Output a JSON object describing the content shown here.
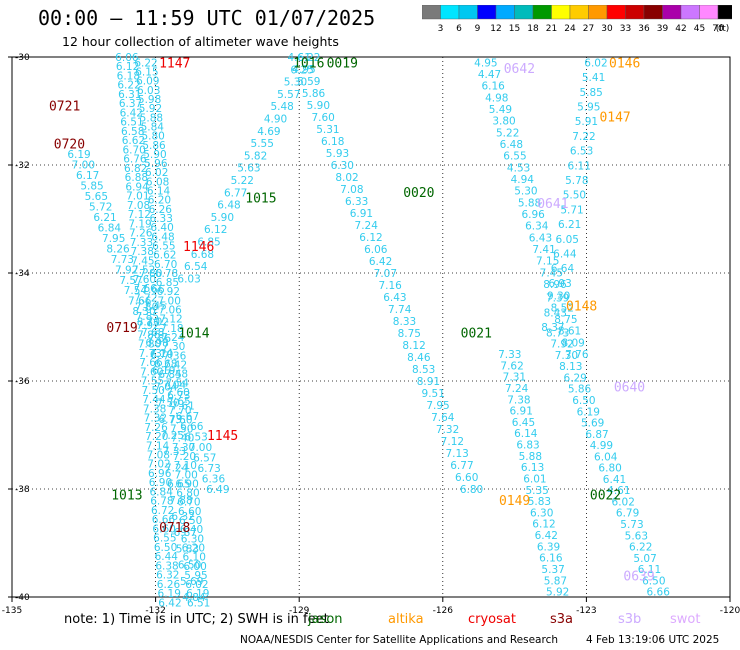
{
  "header": {
    "title": "00:00 – 11:59 UTC 01/07/2025",
    "subtitle": "12 hour collection of altimeter wave heights"
  },
  "colorbar": {
    "labels": [
      "3",
      "6",
      "9",
      "12",
      "15",
      "18",
      "21",
      "24",
      "27",
      "30",
      "33",
      "36",
      "39",
      "42",
      "45",
      "70",
      "(ft)"
    ],
    "colors": [
      "#7a7a7a",
      "#00e5ff",
      "#00c8f0",
      "#0000ff",
      "#00aaff",
      "#00bbbb",
      "#009900",
      "#ffff00",
      "#ffcc00",
      "#ff9900",
      "#ff0000",
      "#cc0000",
      "#880000",
      "#aa00aa",
      "#cc77ff",
      "#ff88ff",
      "#000000"
    ]
  },
  "footer": {
    "note": "note:  1) Time is in UTC; 2) SWH is in feet",
    "legend": [
      {
        "label": "jason",
        "color": "#006600"
      },
      {
        "label": "altika",
        "color": "#ff9900"
      },
      {
        "label": "cryosat",
        "color": "#ee0000"
      },
      {
        "label": "s3a",
        "color": "#880000"
      },
      {
        "label": "s3b",
        "color": "#ccaaff"
      },
      {
        "label": "swot",
        "color": "#ddaaff"
      }
    ],
    "credit": "NOAA/NESDIS Center for Satellite Applications and Research",
    "timestamp": "4 Feb 13:19:06 UTC 2025"
  },
  "chart_data": {
    "type": "scatter",
    "title": "00:00 – 11:59 UTC 01/07/2025",
    "xlabel": "",
    "ylabel": "",
    "xlim": [
      -135,
      -120
    ],
    "ylim": [
      -40,
      -30
    ],
    "x_ticks": [
      "-135",
      "-132",
      "-129",
      "-126",
      "-123",
      "-120"
    ],
    "y_ticks": [
      "-30",
      "-32",
      "-34",
      "-36",
      "-38",
      "-40"
    ],
    "grid": true,
    "units": "ft",
    "pass_labels": [
      {
        "label": "1147",
        "x": -131.6,
        "y": -30.1,
        "color": "#ee0000"
      },
      {
        "label": "1146",
        "x": -131.1,
        "y": -33.5,
        "color": "#ee0000"
      },
      {
        "label": "1145",
        "x": -130.6,
        "y": -37.0,
        "color": "#ee0000"
      },
      {
        "label": "0718",
        "x": -131.6,
        "y": -38.7,
        "color": "#880000"
      },
      {
        "label": "0719",
        "x": -132.7,
        "y": -35.0,
        "color": "#880000"
      },
      {
        "label": "0720",
        "x": -133.8,
        "y": -31.6,
        "color": "#880000"
      },
      {
        "label": "0721",
        "x": -133.9,
        "y": -30.9,
        "color": "#880000"
      },
      {
        "label": "1014",
        "x": -131.2,
        "y": -35.1,
        "color": "#006600"
      },
      {
        "label": "1015",
        "x": -129.8,
        "y": -32.6,
        "color": "#006600"
      },
      {
        "label": "1013",
        "x": -132.6,
        "y": -38.1,
        "color": "#006600"
      },
      {
        "label": "0019",
        "x": -128.1,
        "y": -30.1,
        "color": "#006600"
      },
      {
        "label": "1016",
        "x": -128.8,
        "y": -30.1,
        "color": "#006600"
      },
      {
        "label": "0020",
        "x": -126.5,
        "y": -32.5,
        "color": "#006600"
      },
      {
        "label": "0021",
        "x": -125.3,
        "y": -35.1,
        "color": "#006600"
      },
      {
        "label": "0022",
        "x": -122.6,
        "y": -38.1,
        "color": "#006600"
      },
      {
        "label": "0146",
        "x": -122.2,
        "y": -30.1,
        "color": "#ff9900"
      },
      {
        "label": "0147",
        "x": -122.4,
        "y": -31.1,
        "color": "#ff9900"
      },
      {
        "label": "0148",
        "x": -123.1,
        "y": -34.6,
        "color": "#ff9900"
      },
      {
        "label": "0149",
        "x": -124.5,
        "y": -38.2,
        "color": "#ff9900"
      },
      {
        "label": "0642",
        "x": -124.4,
        "y": -30.2,
        "color": "#ccaaff"
      },
      {
        "label": "0641",
        "x": -123.7,
        "y": -32.7,
        "color": "#ccaaff"
      },
      {
        "label": "0640",
        "x": -122.1,
        "y": -36.1,
        "color": "#ccaaff"
      },
      {
        "label": "0639",
        "x": -121.9,
        "y": -39.6,
        "color": "#ccaaff"
      }
    ],
    "series": [
      {
        "name": "1147",
        "color": "#33ccee",
        "x_start": -132.6,
        "x_end": -131.7,
        "y_start": -30,
        "y_end": -40.1,
        "values": [
          6.06,
          6.12,
          6.18,
          6.22,
          6.31,
          6.37,
          6.42,
          6.51,
          6.58,
          6.62,
          6.7,
          6.76,
          6.82,
          6.88,
          6.94,
          7.01,
          7.08,
          7.12,
          7.19,
          7.26,
          7.33,
          7.38,
          7.45,
          7.52,
          7.6,
          7.66,
          7.72,
          7.8,
          7.85,
          7.92,
          7.86,
          7.8,
          7.73,
          7.66,
          7.6,
          7.55,
          7.5,
          7.44,
          7.38,
          7.32,
          7.26,
          7.2,
          7.14,
          7.08,
          7.02,
          6.96,
          6.9,
          6.84,
          6.78,
          6.72,
          6.66,
          6.6,
          6.55,
          6.5,
          6.44,
          6.38,
          6.32,
          6.26,
          6.19,
          6.42
        ]
      },
      {
        "name": "1146",
        "color": "#33ccee",
        "x_start": -132.2,
        "x_end": -131.1,
        "y_start": -30.1,
        "y_end": -40.1,
        "values": [
          6.22,
          6.15,
          6.09,
          6.03,
          5.98,
          5.92,
          5.88,
          5.84,
          5.8,
          5.86,
          5.9,
          5.96,
          6.02,
          6.08,
          6.14,
          6.2,
          6.26,
          6.33,
          6.4,
          6.48,
          6.55,
          6.62,
          6.7,
          6.78,
          6.85,
          6.92,
          7.0,
          7.06,
          7.12,
          7.18,
          7.24,
          7.3,
          7.36,
          7.42,
          7.48,
          7.54,
          7.6,
          7.65,
          7.7,
          7.6,
          7.5,
          7.4,
          7.3,
          7.2,
          7.1,
          7.0,
          6.9,
          6.8,
          6.7,
          6.6,
          6.5,
          6.4,
          6.3,
          6.2,
          6.1,
          6.0,
          5.95,
          6.02,
          6.19,
          6.51
        ]
      },
      {
        "name": "0719",
        "color": "#33ccee",
        "x_start": -133.6,
        "x_end": -130.7,
        "y_start": -31.8,
        "y_end": -38.0,
        "values": [
          6.19,
          7.0,
          6.17,
          5.85,
          5.65,
          5.72,
          6.21,
          6.84,
          7.95,
          8.26,
          7.73,
          7.92,
          7.57,
          7.54,
          7.66,
          8.3,
          8.7,
          7.68,
          6.98,
          7.14,
          6.68,
          6.85,
          7.04,
          6.73,
          7.61,
          6.67,
          6.66,
          6.53,
          7.0,
          6.57,
          6.73,
          6.36,
          6.49
        ]
      },
      {
        "name": "0718",
        "color": "#33ccee",
        "x_start": -132.1,
        "x_end": -131.2,
        "y_start": -34.0,
        "y_end": -40.0,
        "values": [
          7.8,
          7.66,
          7.45,
          7.02,
          7.86,
          6.7,
          6.19,
          7.04,
          7.5,
          6.73,
          7.25,
          7.33,
          7.24,
          6.65,
          7.88,
          6.32,
          6.87,
          5.83,
          6.5,
          5.69,
          4.84
        ]
      },
      {
        "name": "1015",
        "color": "#33ccee",
        "x_start": -131.3,
        "x_end": -128.8,
        "y_start": -34.1,
        "y_end": -30.0,
        "values": [
          6.03,
          6.54,
          6.68,
          6.85,
          6.12,
          5.9,
          6.48,
          6.77,
          5.22,
          5.63,
          5.82,
          5.55,
          4.69,
          4.9,
          5.48,
          5.57,
          5.3,
          6.25,
          6.22
        ]
      },
      {
        "name": "0020",
        "color": "#33ccee",
        "x_start": -129.0,
        "x_end": -125.4,
        "y_start": -30.0,
        "y_end": -38.0,
        "values": [
          4.61,
          4.95,
          5.59,
          5.86,
          5.9,
          7.6,
          5.31,
          6.18,
          5.93,
          6.3,
          8.02,
          7.08,
          6.33,
          6.91,
          7.24,
          6.12,
          6.06,
          6.42,
          7.07,
          7.16,
          6.43,
          7.74,
          8.33,
          8.75,
          8.12,
          8.46,
          8.53,
          8.91,
          9.51,
          7.95,
          7.64,
          7.32,
          7.12,
          7.13,
          6.77,
          6.6,
          6.8
        ]
      },
      {
        "name": "0642",
        "color": "#33ccee",
        "x_start": -125.1,
        "x_end": -123.2,
        "y_start": -30.1,
        "y_end": -35.5,
        "values": [
          4.95,
          4.47,
          6.16,
          4.98,
          5.49,
          3.8,
          5.22,
          6.48,
          6.55,
          4.53,
          4.94,
          5.3,
          5.88,
          6.96,
          6.34,
          6.43,
          7.41,
          7.15,
          7.45,
          8.96,
          9.3,
          8.52,
          8.75,
          8.61,
          8.09,
          7.76
        ]
      },
      {
        "name": "0021",
        "color": "#33ccee",
        "x_start": -124.6,
        "x_end": -123.6,
        "y_start": -35.5,
        "y_end": -39.9,
        "values": [
          7.33,
          7.62,
          7.31,
          7.24,
          7.38,
          6.91,
          6.45,
          6.14,
          6.83,
          5.88,
          6.13,
          6.01,
          5.35,
          5.83,
          6.3,
          6.12,
          6.42,
          6.39,
          6.16,
          5.37,
          5.87,
          5.92
        ]
      },
      {
        "name": "0147",
        "color": "#33ccee",
        "x_start": -122.8,
        "x_end": -123.7,
        "y_start": -30.1,
        "y_end": -35.0,
        "values": [
          6.02,
          5.41,
          5.85,
          5.95,
          5.91,
          7.22,
          6.53,
          6.11,
          5.78,
          5.5,
          5.71,
          6.21,
          6.05,
          6.44,
          6.64,
          6.93,
          7.39,
          8.43,
          8.37
        ]
      },
      {
        "name": "0148",
        "color": "#33ccee",
        "x_start": -123.6,
        "x_end": -121.5,
        "y_start": -35.1,
        "y_end": -39.9,
        "values": [
          8.73,
          7.92,
          7.3,
          8.13,
          6.29,
          5.86,
          6.5,
          6.19,
          5.69,
          6.87,
          4.99,
          6.04,
          6.8,
          6.41,
          4.61,
          6.02,
          6.79,
          5.73,
          5.63,
          6.22,
          5.07,
          6.11,
          6.5,
          6.66
        ]
      }
    ]
  }
}
